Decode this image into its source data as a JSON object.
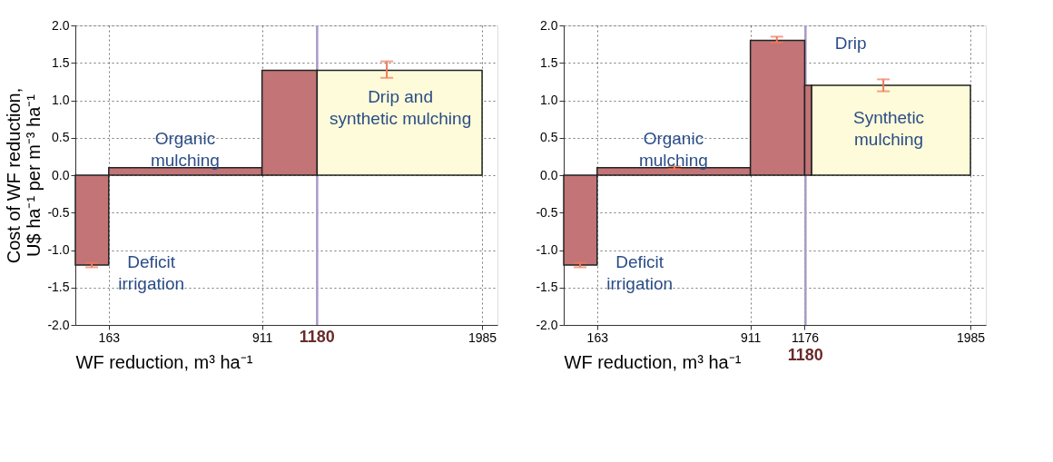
{
  "chart_data": [
    {
      "type": "area",
      "ylabel": "Cost of WF reduction,\nU$ ha⁻¹ per m⁻³ ha⁻¹",
      "xlabel": "WF reduction, m³ ha⁻¹",
      "xlim": [
        0,
        2060
      ],
      "xticks": [
        163,
        911,
        1985
      ],
      "ylim": [
        -2,
        2
      ],
      "yticks": [
        {
          "value": -2,
          "label": "-2.0"
        },
        {
          "value": -1.5,
          "label": "-1.5"
        },
        {
          "value": -1,
          "label": "-1.0"
        },
        {
          "value": -0.5,
          "label": "-0.5"
        },
        {
          "value": 0,
          "label": "0.0"
        },
        {
          "value": 0.5,
          "label": "0.5"
        },
        {
          "value": 1,
          "label": "1.0"
        },
        {
          "value": 1.5,
          "label": "1.5"
        },
        {
          "value": 2,
          "label": "2.0"
        }
      ],
      "grid": true,
      "series": [
        {
          "color": "#c27476",
          "x": [
            0,
            80,
            163
          ],
          "values": [
            -1.2,
            -1.2,
            -1.2
          ],
          "errors": [
            null,
            0.03,
            null
          ]
        },
        {
          "color": "#c27476",
          "x": [
            163,
            911
          ],
          "values": [
            0.1,
            0.1
          ]
        },
        {
          "color": "#c27476",
          "x": [
            911,
            1180
          ],
          "values": [
            1.4,
            1.4
          ]
        },
        {
          "color": "#fdfbd9",
          "x": [
            1180,
            1520,
            1985
          ],
          "values": [
            1.4,
            1.4,
            1.4
          ],
          "errors": [
            null,
            [
              1.3,
              1.52
            ],
            null
          ]
        }
      ],
      "ref_lines": [
        {
          "axis": "x",
          "value": 1180,
          "label": "1180",
          "color": "#a99bc6"
        }
      ],
      "annotations": [
        "Organic\nmulching",
        "Deficit\nirrigation",
        "Drip and\nsynthetic mulching"
      ]
    },
    {
      "type": "area",
      "xlabel": "WF reduction, m³ ha⁻¹",
      "xlim": [
        0,
        2060
      ],
      "xticks": [
        163,
        911,
        1176,
        1985
      ],
      "ylim": [
        -2,
        2
      ],
      "yticks": [
        {
          "value": -2,
          "label": "-2.0"
        },
        {
          "value": -1.5,
          "label": "-1.5"
        },
        {
          "value": -1,
          "label": "-1.0"
        },
        {
          "value": -0.5,
          "label": "-0.5"
        },
        {
          "value": 0,
          "label": "0.0"
        },
        {
          "value": 0.5,
          "label": "0.5"
        },
        {
          "value": 1,
          "label": "1.0"
        },
        {
          "value": 1.5,
          "label": "1.5"
        },
        {
          "value": 2,
          "label": "2.0"
        }
      ],
      "grid": true,
      "series": [
        {
          "color": "#c27476",
          "x": [
            0,
            80,
            163
          ],
          "values": [
            -1.2,
            -1.2,
            -1.2
          ],
          "errors": [
            null,
            0.03,
            null
          ]
        },
        {
          "color": "#c27476",
          "x": [
            163,
            540,
            911
          ],
          "values": [
            0.1,
            0.1,
            0.1
          ],
          "errors": [
            null,
            0.02,
            null
          ]
        },
        {
          "color": "#c27476",
          "x": [
            911,
            1040,
            1176
          ],
          "values": [
            1.8,
            1.8,
            1.8
          ],
          "errors": [
            null,
            [
              1.77,
              1.85
            ],
            null
          ]
        },
        {
          "color": "#c27476",
          "x": [
            1176,
            1210
          ],
          "values": [
            1.2,
            1.2
          ]
        },
        {
          "color": "#fdfbd9",
          "x": [
            1210,
            1560,
            1985
          ],
          "values": [
            1.2,
            1.2,
            1.2
          ],
          "errors": [
            null,
            [
              1.12,
              1.28
            ],
            null
          ]
        }
      ],
      "ref_lines": [
        {
          "axis": "x",
          "value": 1180,
          "label": "1180",
          "color": "#a99bc6"
        }
      ],
      "annotations": [
        "Organic\nmulching",
        "Deficit\nirrigation",
        "Synthetic\nmulching",
        "Drip"
      ]
    }
  ]
}
